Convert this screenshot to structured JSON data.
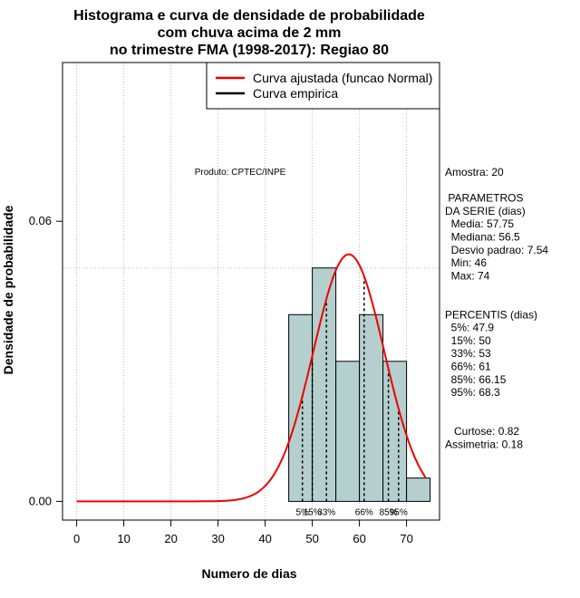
{
  "chart_data": {
    "type": "histogram",
    "title": [
      "Histograma e curva de densidade de probabilidade",
      "com chuva acima de 2 mm",
      "no trimestre FMA (1998-2017): Regiao 80"
    ],
    "xlabel": "Numero de dias",
    "ylabel": "Densidade de probabilidade",
    "xlim": [
      -3,
      77
    ],
    "ylim": [
      -0.004,
      0.094
    ],
    "xticks": [
      0,
      10,
      20,
      30,
      40,
      50,
      60,
      70
    ],
    "xtick_labels": [
      "0",
      "10",
      "20",
      "30",
      "40",
      "50",
      "60",
      "70"
    ],
    "yticks": [
      0.0,
      0.06
    ],
    "ytick_labels": [
      "0.00",
      "0.06"
    ],
    "reference_line_y": 0.05,
    "bins": [
      {
        "x0": 45,
        "x1": 50,
        "density": 0.04
      },
      {
        "x0": 50,
        "x1": 55,
        "density": 0.05
      },
      {
        "x0": 55,
        "x1": 60,
        "density": 0.03
      },
      {
        "x0": 60,
        "x1": 65,
        "density": 0.04
      },
      {
        "x0": 65,
        "x1": 70,
        "density": 0.03
      },
      {
        "x0": 70,
        "x1": 75,
        "density": 0.005
      }
    ],
    "normal_fit": {
      "mean": 57.75,
      "sd": 7.54,
      "x_range": [
        0,
        74
      ]
    },
    "percentile_lines": [
      {
        "label": "5%",
        "x": 47.9
      },
      {
        "label": "15%",
        "x": 50
      },
      {
        "label": "33%",
        "x": 53
      },
      {
        "label": "66%",
        "x": 61
      },
      {
        "label": "85%",
        "x": 66.15
      },
      {
        "label": "95%",
        "x": 68.3
      }
    ],
    "legend": [
      {
        "label": "Curva ajustada (funcao Normal)",
        "color": "#ee0000"
      },
      {
        "label": "Curva empirica",
        "color": "#000000"
      }
    ],
    "legend_position": "top-right",
    "grid": "vertical dotted",
    "colors": {
      "bar_fill": "#b5cfcf",
      "curve": "#ee0000",
      "grid": "#bbbbbb"
    }
  },
  "annotations": {
    "produto": "Produto: CPTEC/INPE",
    "stats_lines": [
      "Amostra: 20",
      "",
      " PARAMETROS",
      "DA SERIE (dias)",
      "  Media: 57.75",
      "  Mediana: 56.5",
      "  Desvio padrao: 7.54",
      "  Min: 46",
      "  Max: 74",
      "",
      "",
      "PERCENTIS (dias)",
      "  5%: 47.9",
      "  15%: 50",
      "  33%: 53",
      "  66%: 61",
      "  85%: 66.15",
      "  95%: 68.3",
      "",
      "",
      "   Curtose: 0.82",
      "Assimetria: 0.18"
    ]
  }
}
